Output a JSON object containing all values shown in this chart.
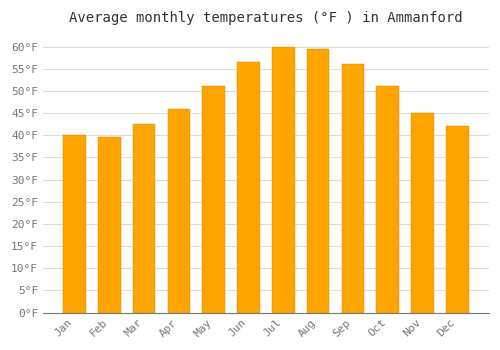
{
  "title": "Average monthly temperatures (°F ) in Ammanford",
  "months": [
    "Jan",
    "Feb",
    "Mar",
    "Apr",
    "May",
    "Jun",
    "Jul",
    "Aug",
    "Sep",
    "Oct",
    "Nov",
    "Dec"
  ],
  "values": [
    40,
    39.5,
    42.5,
    46,
    51,
    56.5,
    60,
    59.5,
    56,
    51,
    45,
    42
  ],
  "bar_color_top": "#FFA500",
  "bar_color_bottom": "#FFD080",
  "bar_edge_color": "#E08000",
  "background_color": "#FFFFFF",
  "plot_bg_color": "#FFFFFF",
  "grid_color": "#DDDDDD",
  "ylim": [
    0,
    63
  ],
  "yticks": [
    0,
    5,
    10,
    15,
    20,
    25,
    30,
    35,
    40,
    45,
    50,
    55,
    60
  ],
  "ylabel_format": "°F",
  "title_fontsize": 10,
  "tick_fontsize": 8,
  "font_color": "#777777",
  "title_color": "#333333"
}
